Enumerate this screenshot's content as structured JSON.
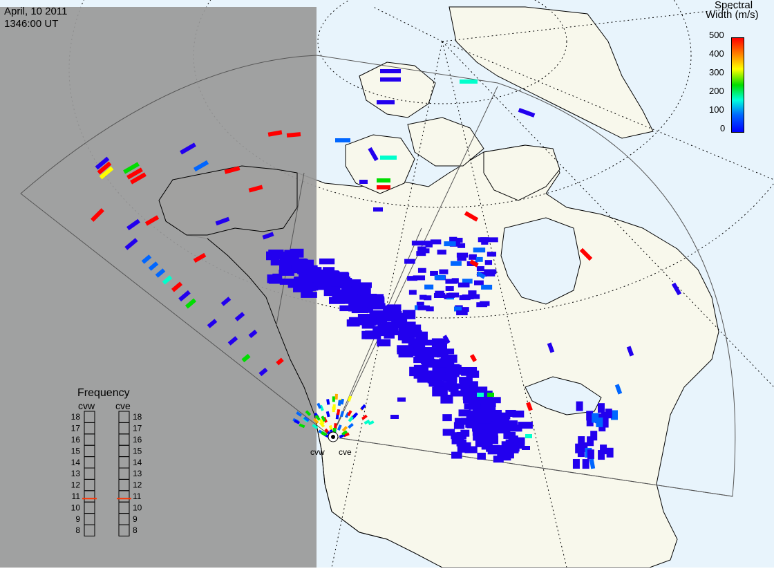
{
  "header": {
    "date": "April, 10 2011",
    "time": "1346:00 UT"
  },
  "colorbar": {
    "title_line1": "Spectral",
    "title_line2": "Width (m/s)",
    "ticks": [
      "500",
      "400",
      "300",
      "200",
      "100",
      "0"
    ],
    "colors": [
      "#ff0000",
      "#ffaa00",
      "#ffff00",
      "#00dd00",
      "#00ffcc",
      "#0066ff",
      "#0000ff"
    ]
  },
  "frequency_panel": {
    "title": "Frequency",
    "left_label": "cvw",
    "right_label": "cve",
    "levels": [
      "18",
      "17",
      "16",
      "15",
      "14",
      "13",
      "12",
      "11",
      "10",
      "9",
      "8"
    ],
    "cvw_value": 10.8,
    "cve_value": 10.8,
    "marker_color": "#ff3300"
  },
  "radar_site": {
    "left_label": "cvw",
    "right_label": "cve"
  },
  "map_colors": {
    "night_shade": "#999999",
    "land": "#f8f8ec",
    "ocean": "#e8f4fc",
    "coast": "#000000",
    "grid": "#000000",
    "fov": "#555555"
  }
}
